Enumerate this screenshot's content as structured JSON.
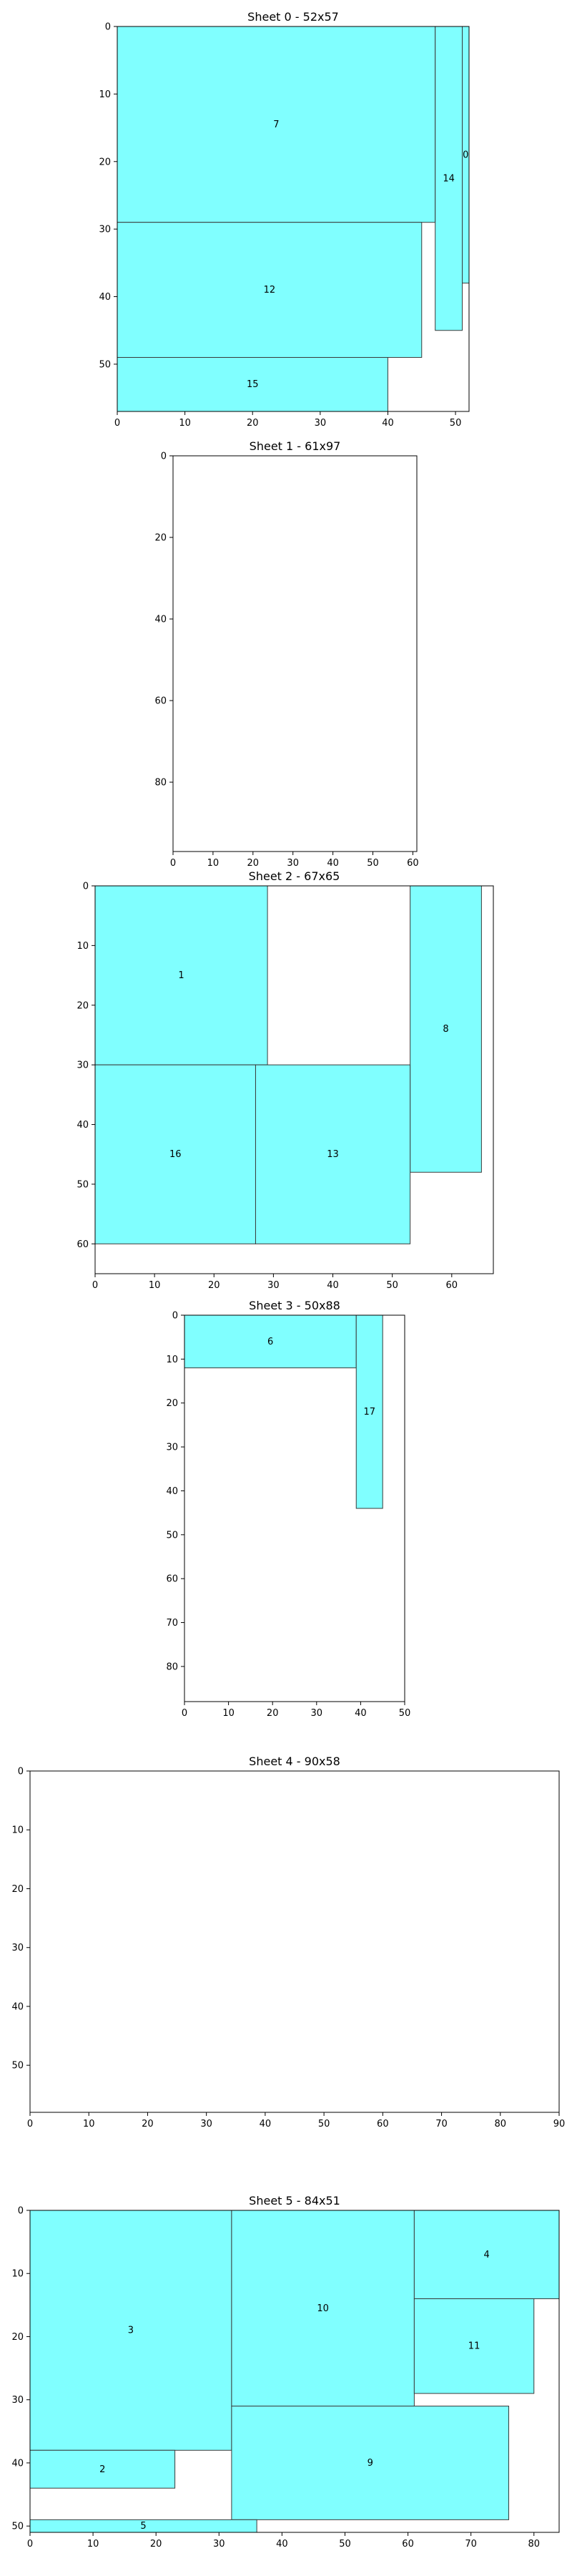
{
  "style": {
    "piece_fill": "#80ffff",
    "piece_stroke": "#3a3a3a",
    "axis_color": "#000000",
    "background": "#ffffff"
  },
  "chart_data": [
    {
      "type": "rectangle-packing",
      "title": "Sheet 0 - 52x57",
      "xlim": [
        0,
        52
      ],
      "ylim": [
        57,
        0
      ],
      "xticks": [
        0,
        10,
        20,
        30,
        40,
        50
      ],
      "yticks": [
        0,
        10,
        20,
        30,
        40,
        50
      ],
      "pieces": [
        {
          "id": "7",
          "x": 0,
          "y": 0,
          "w": 47,
          "h": 29
        },
        {
          "id": "14",
          "x": 47,
          "y": 0,
          "w": 4,
          "h": 45
        },
        {
          "id": "0",
          "x": 51,
          "y": 0,
          "w": 1,
          "h": 38
        },
        {
          "id": "12",
          "x": 0,
          "y": 29,
          "w": 45,
          "h": 20
        },
        {
          "id": "15",
          "x": 0,
          "y": 49,
          "w": 40,
          "h": 8
        }
      ]
    },
    {
      "type": "rectangle-packing",
      "title": "Sheet 1 - 61x97",
      "xlim": [
        0,
        61
      ],
      "ylim": [
        97,
        0
      ],
      "xticks": [
        0,
        10,
        20,
        30,
        40,
        50,
        60
      ],
      "yticks": [
        0,
        20,
        40,
        60,
        80
      ],
      "pieces": []
    },
    {
      "type": "rectangle-packing",
      "title": "Sheet 2 - 67x65",
      "xlim": [
        0,
        67
      ],
      "ylim": [
        65,
        0
      ],
      "xticks": [
        0,
        10,
        20,
        30,
        40,
        50,
        60
      ],
      "yticks": [
        0,
        10,
        20,
        30,
        40,
        50,
        60
      ],
      "pieces": [
        {
          "id": "1",
          "x": 0,
          "y": 0,
          "w": 29,
          "h": 30
        },
        {
          "id": "8",
          "x": 53,
          "y": 0,
          "w": 12,
          "h": 48
        },
        {
          "id": "16",
          "x": 0,
          "y": 30,
          "w": 27,
          "h": 30
        },
        {
          "id": "13",
          "x": 27,
          "y": 30,
          "w": 26,
          "h": 30
        }
      ]
    },
    {
      "type": "rectangle-packing",
      "title": "Sheet 3 - 50x88",
      "xlim": [
        0,
        50
      ],
      "ylim": [
        88,
        0
      ],
      "xticks": [
        0,
        10,
        20,
        30,
        40,
        50
      ],
      "yticks": [
        0,
        10,
        20,
        30,
        40,
        50,
        60,
        70,
        80
      ],
      "pieces": [
        {
          "id": "6",
          "x": 0,
          "y": 0,
          "w": 39,
          "h": 12
        },
        {
          "id": "17",
          "x": 39,
          "y": 0,
          "w": 6,
          "h": 44
        }
      ]
    },
    {
      "type": "rectangle-packing",
      "title": "Sheet 4 - 90x58",
      "xlim": [
        0,
        90
      ],
      "ylim": [
        58,
        0
      ],
      "xticks": [
        0,
        10,
        20,
        30,
        40,
        50,
        60,
        70,
        80,
        90
      ],
      "yticks": [
        0,
        10,
        20,
        30,
        40,
        50
      ],
      "pieces": []
    },
    {
      "type": "rectangle-packing",
      "title": "Sheet 5 - 84x51",
      "xlim": [
        0,
        84
      ],
      "ylim": [
        51,
        0
      ],
      "xticks": [
        0,
        10,
        20,
        30,
        40,
        50,
        60,
        70,
        80
      ],
      "yticks": [
        0,
        10,
        20,
        30,
        40,
        50
      ],
      "pieces": [
        {
          "id": "3",
          "x": 0,
          "y": 0,
          "w": 32,
          "h": 38
        },
        {
          "id": "10",
          "x": 32,
          "y": 0,
          "w": 29,
          "h": 31
        },
        {
          "id": "4",
          "x": 61,
          "y": 0,
          "w": 23,
          "h": 14
        },
        {
          "id": "11",
          "x": 61,
          "y": 14,
          "w": 19,
          "h": 15
        },
        {
          "id": "9",
          "x": 32,
          "y": 31,
          "w": 44,
          "h": 18
        },
        {
          "id": "2",
          "x": 0,
          "y": 38,
          "w": 23,
          "h": 6
        },
        {
          "id": "5",
          "x": 0,
          "y": 49,
          "w": 36,
          "h": 2
        }
      ]
    }
  ]
}
